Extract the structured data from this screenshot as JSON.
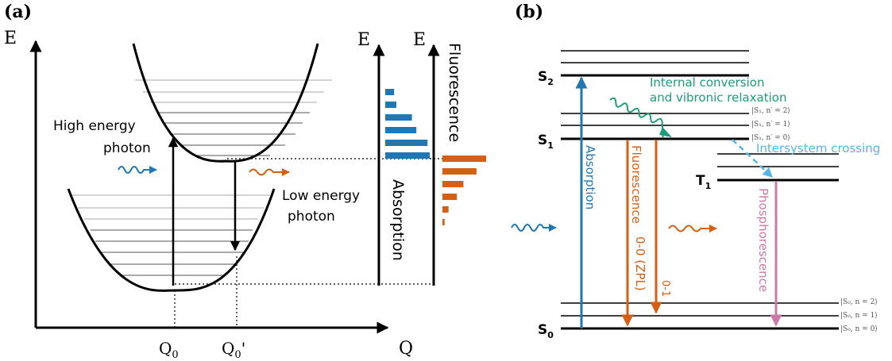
{
  "colors": {
    "black": "#000000",
    "blue": "#1f77b4",
    "orange": "#d65f14",
    "green": "#1a9e77",
    "lightblue": "#56b4e9",
    "pink": "#cc79a7",
    "gray": "#9a9a9a"
  },
  "panel_a": {
    "label": "(a)",
    "axis_e": "E",
    "axis_q": "Q",
    "tick_q0": "Q",
    "tick_q0_sub": "0",
    "tick_q0p": "Q",
    "tick_q0p_sub": "0",
    "tick_q0p_prime": "'",
    "high_energy_line1": "High energy",
    "high_energy_line2": "photon",
    "low_energy_line1": "Low energy",
    "low_energy_line2": "photon",
    "absorption_axis_e": "E",
    "absorption_label": "Absorption",
    "fluorescence_axis_e": "E",
    "fluorescence_label": "Fluorescence",
    "absorption_bars": [
      0.2,
      0.25,
      0.6,
      0.7,
      0.95,
      1.0
    ],
    "fluorescence_bars": [
      1.0,
      0.78,
      0.48,
      0.33,
      0.14,
      0.05
    ]
  },
  "panel_b": {
    "label": "(b)",
    "s2_main": "S",
    "s2_sub": "2",
    "s1_main": "S",
    "s1_sub": "1",
    "t1_main": "T",
    "t1_sub": "1",
    "s0_main": "S",
    "s0_sub": "0",
    "internal_conversion_line1": "Internal conversion",
    "internal_conversion_line2": "and vibronic relaxation",
    "s1_state_2": "|S₁, n′ = 2⟩",
    "s1_state_1": "|S₁, n′ = 1⟩",
    "s1_state_0": "|S₁, n′ = 0⟩",
    "intersystem_crossing": "Intersystem crossing",
    "absorption": "Absorption",
    "fluorescence": "Fluorescence",
    "zpl": "0-0 (ZPL)",
    "zero_one": "0-1",
    "phosphorescence": "Phosphorescence",
    "s0_state_2": "|S₀, n = 2⟩",
    "s0_state_1": "|S₀, n = 1⟩",
    "s0_state_0": "|S₀, n = 0⟩"
  }
}
